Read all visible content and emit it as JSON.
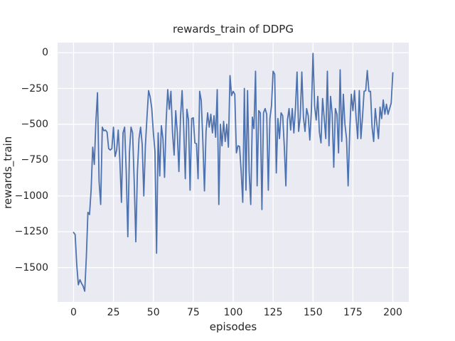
{
  "figure": {
    "background": "#ffffff"
  },
  "colors": {
    "line": "#4c72b0",
    "axes_background": "#eaeaf2",
    "grid": "#ffffff",
    "text": "#262626"
  },
  "chart_data": {
    "type": "line",
    "title": "rewards_train of DDPG",
    "xlabel": "episodes",
    "ylabel": "rewards_train",
    "grid": true,
    "legend": false,
    "xlim": [
      -10,
      210
    ],
    "ylim": [
      -1740,
      70
    ],
    "x_ticks": [
      0,
      25,
      50,
      75,
      100,
      125,
      150,
      175,
      200
    ],
    "x_tick_labels": [
      "0",
      "25",
      "50",
      "75",
      "100",
      "125",
      "150",
      "175",
      "200"
    ],
    "y_ticks": [
      0,
      -250,
      -500,
      -750,
      -1000,
      -1250,
      -1500
    ],
    "y_tick_labels": [
      "0",
      "−250",
      "−500",
      "−750",
      "−1000",
      "−1250",
      "−1500"
    ],
    "x_start": 0,
    "x_step": 1,
    "series": [
      {
        "name": "rewards_train",
        "color": "#4c72b0",
        "values": [
          -1255,
          -1270,
          -1480,
          -1620,
          -1585,
          -1610,
          -1630,
          -1665,
          -1430,
          -1115,
          -1130,
          -960,
          -660,
          -780,
          -480,
          -280,
          -900,
          -1060,
          -520,
          -545,
          -540,
          -555,
          -670,
          -680,
          -670,
          -520,
          -725,
          -680,
          -540,
          -750,
          -1045,
          -560,
          -520,
          -830,
          -1285,
          -700,
          -520,
          -560,
          -900,
          -1320,
          -830,
          -600,
          -520,
          -640,
          -1000,
          -650,
          -450,
          -265,
          -310,
          -390,
          -560,
          -690,
          -1400,
          -560,
          -860,
          -510,
          -600,
          -870,
          -480,
          -258,
          -395,
          -270,
          -560,
          -715,
          -405,
          -560,
          -830,
          -450,
          -265,
          -520,
          -880,
          -395,
          -470,
          -960,
          -460,
          -455,
          -630,
          -635,
          -880,
          -270,
          -335,
          -620,
          -965,
          -550,
          -420,
          -520,
          -430,
          -560,
          -440,
          -590,
          -258,
          -1060,
          -500,
          -650,
          -480,
          -620,
          -500,
          -660,
          -160,
          -300,
          -270,
          -290,
          -700,
          -650,
          -655,
          -830,
          -1045,
          -250,
          -960,
          -265,
          -830,
          -1060,
          -450,
          -530,
          -130,
          -930,
          -405,
          -420,
          -1095,
          -420,
          -390,
          -430,
          -960,
          -460,
          -370,
          -130,
          -150,
          -840,
          -460,
          -600,
          -420,
          -440,
          -650,
          -930,
          -470,
          -390,
          -540,
          -390,
          -560,
          -390,
          -135,
          -550,
          -450,
          -135,
          -450,
          -550,
          -390,
          -440,
          -610,
          -400,
          -5,
          -372,
          -470,
          -305,
          -555,
          -630,
          -320,
          -455,
          -600,
          -130,
          -650,
          -305,
          -430,
          -800,
          -390,
          -430,
          -700,
          -120,
          -620,
          -290,
          -500,
          -600,
          -930,
          -550,
          -290,
          -405,
          -265,
          -455,
          -600,
          -265,
          -600,
          -450,
          -270,
          -265,
          -125,
          -270,
          -270,
          -520,
          -620,
          -390,
          -500,
          -600,
          -380,
          -460,
          -330,
          -430,
          -360,
          -430,
          -390,
          -350,
          -140
        ]
      }
    ]
  }
}
